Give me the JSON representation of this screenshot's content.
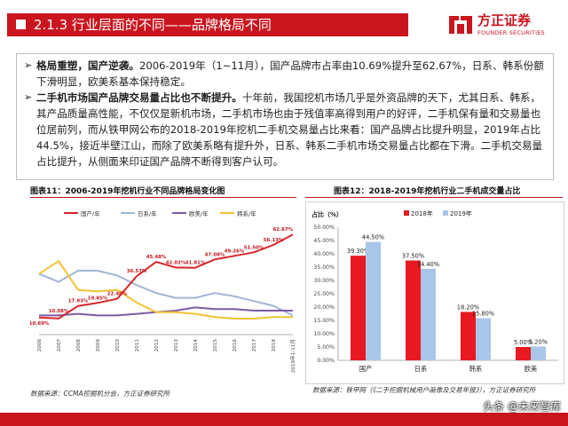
{
  "header": {
    "title": "2.1.3  行业层面的不同——品牌格局不同",
    "logo_cn": "方正证券",
    "logo_en": "FOUNDER SECURITIES"
  },
  "bullets": [
    {
      "marker": "➢",
      "bold": "格局重塑，国产逆袭。",
      "text": "2006-2019年（1~11月），国产品牌市占率由10.69%提升至62.67%，日系、韩系份额下滑明显，欧美系基本保持稳定。"
    },
    {
      "marker": "➢",
      "bold": "二手机市场国产品牌交易量占比也不断提升。",
      "text": "十年前，我国挖机市场几乎是外资品牌的天下，尤其日系、韩系，其产品质量高性能，不仅仅是新机市场，二手机市场也由于残值率高得到用户的好评，二手机保有量和交易量也位居前列，而从铁甲网公布的2018-2019年挖机二手机交易量占比来看：国产品牌占比提升明显，2019年占比44.5%，接近半壁江山，而除了欧美系略有提升外，日系、韩系二手机市场交易量占比都在下滑。二手机交易量占比提升，从侧面来印证国产品牌不断得到客户认可。"
    }
  ],
  "figure1": {
    "title": "图表11：2006-2019年挖机行业不同品牌格局变化图",
    "source": "数据来源：CCMA挖掘机分会，方正证券研究所"
  },
  "figure2": {
    "title": "图表12：2018-2019年挖机行业二手机成交量占比",
    "source": "数据来源：铁甲网（《二手挖掘机械用户画像及交易年报》），方正证券研究所"
  },
  "watermark": "头条 @未来智库",
  "chart_data": [
    {
      "type": "line",
      "x": [
        "2006",
        "2007",
        "2008",
        "2009",
        "2010",
        "2011",
        "2012",
        "2013",
        "2014",
        "2015",
        "2016",
        "2017",
        "2018",
        "2019年1-11月"
      ],
      "series": [
        {
          "name": "国产/年",
          "color": "#d7262a",
          "values": [
            10.69,
            10.08,
            17.93,
            19.85,
            22.4,
            36.57,
            45.48,
            42.02,
            41.81,
            47.08,
            49.26,
            51.5,
            56.13,
            62.67
          ]
        },
        {
          "name": "日系/年",
          "color": "#9fb6d6",
          "values": [
            38,
            33,
            40,
            40,
            37,
            31,
            26,
            23,
            23,
            26,
            24,
            21,
            18,
            12
          ]
        },
        {
          "name": "欧美/年",
          "color": "#7d5aa6",
          "values": [
            12,
            12,
            13,
            12,
            12,
            13,
            14,
            15,
            17,
            16,
            16,
            15,
            15,
            15
          ]
        },
        {
          "name": "韩系/年",
          "color": "#f1c232",
          "values": [
            38,
            46,
            28,
            27,
            28,
            20,
            14,
            14,
            13,
            11,
            10,
            10,
            11,
            11
          ]
        }
      ],
      "data_labels": [
        "10.69%",
        "10.08%",
        "17.93%",
        "19.85%",
        "22.40%",
        "36.57%",
        "45.48%",
        "42.02%",
        "41.81%",
        "47.08%",
        "49.26%",
        "51.50%",
        "56.13%",
        "62.67%"
      ],
      "ylim": [
        0,
        70
      ],
      "grid": false,
      "legend": "top"
    },
    {
      "type": "bar",
      "ylabel": "占比（%）",
      "categories": [
        "国产",
        "日系",
        "韩系",
        "欧美"
      ],
      "series": [
        {
          "name": "2018年",
          "color": "#e8191f",
          "values": [
            39.3,
            37.5,
            18.2,
            5.0
          ],
          "labels": [
            "39.30%",
            "37.50%",
            "18.20%",
            "5.00%"
          ]
        },
        {
          "name": "2019年",
          "color": "#a9c6e8",
          "values": [
            44.5,
            34.4,
            15.8,
            5.2
          ],
          "labels": [
            "44.50%",
            "34.40%",
            "15.80%",
            "5.20%"
          ]
        }
      ],
      "ylim": [
        0,
        50
      ],
      "yticks": [
        "0.00%",
        "5.00%",
        "10.00%",
        "15.00%",
        "20.00%",
        "25.00%",
        "30.00%",
        "35.00%",
        "40.00%",
        "45.00%",
        "50.00%"
      ],
      "grid": false,
      "legend": "top"
    }
  ]
}
